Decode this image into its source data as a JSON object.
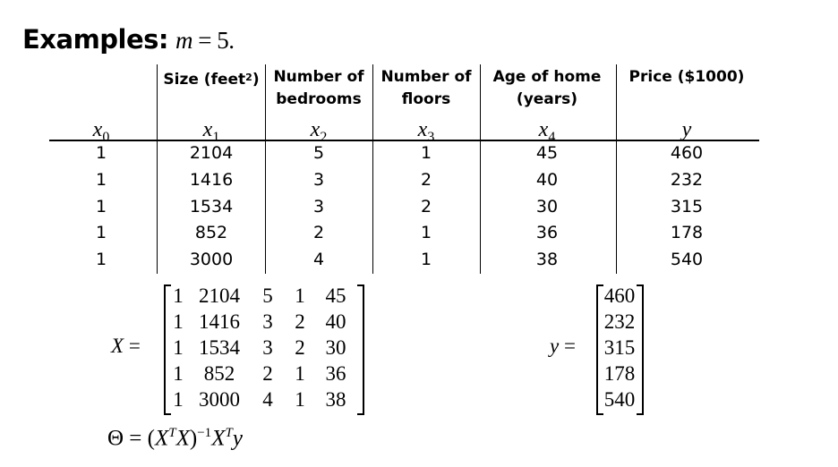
{
  "title": {
    "label": "Examples:",
    "math": "m = 5."
  },
  "table": {
    "headers": [
      {
        "lines": []
      },
      {
        "lines": [
          "Size (feet",
          "2",
          ")"
        ]
      },
      {
        "lines": [
          "Number of",
          "bedrooms"
        ]
      },
      {
        "lines": [
          "Number of",
          "floors"
        ]
      },
      {
        "lines": [
          "Age of home",
          "(years)"
        ]
      },
      {
        "lines": [
          "Price ($1000)"
        ]
      }
    ],
    "symbols": [
      {
        "v": "x",
        "s": "0"
      },
      {
        "v": "x",
        "s": "1"
      },
      {
        "v": "x",
        "s": "2"
      },
      {
        "v": "x",
        "s": "3"
      },
      {
        "v": "x",
        "s": "4"
      },
      {
        "v": "y",
        "s": ""
      }
    ],
    "rows": [
      [
        "1",
        "2104",
        "5",
        "1",
        "45",
        "460"
      ],
      [
        "1",
        "1416",
        "3",
        "2",
        "40",
        "232"
      ],
      [
        "1",
        "1534",
        "3",
        "2",
        "30",
        "315"
      ],
      [
        "1",
        "852",
        "2",
        "1",
        "36",
        "178"
      ],
      [
        "1",
        "3000",
        "4",
        "1",
        "38",
        "540"
      ]
    ]
  },
  "matrix_X": {
    "label": "X =",
    "rows": [
      [
        "1",
        "2104",
        "5",
        "1",
        "45"
      ],
      [
        "1",
        "1416",
        "3",
        "2",
        "40"
      ],
      [
        "1",
        "1534",
        "3",
        "2",
        "30"
      ],
      [
        "1",
        "852",
        "2",
        "1",
        "36"
      ],
      [
        "1",
        "3000",
        "4",
        "1",
        "38"
      ]
    ]
  },
  "vector_y": {
    "label": "y =",
    "values": [
      "460",
      "232",
      "315",
      "178",
      "540"
    ]
  },
  "equation": "Θ = (XᵀX)⁻¹Xᵀy"
}
